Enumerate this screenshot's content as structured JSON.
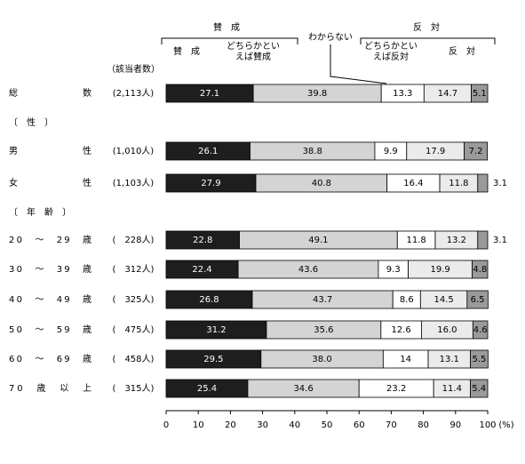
{
  "chart_data": {
    "type": "stacked-bar-horizontal",
    "group_labels": [
      "賛　成",
      "反　対"
    ],
    "count_header": "（該当者数）",
    "section_labels": [
      "〔　性　〕",
      "〔　年　齢　〕"
    ],
    "categories": [
      "総数",
      "男性",
      "女性",
      "20　～　29　歳",
      "30　～　39　歳",
      "40　～　49　歳",
      "50　～　59　歳",
      "60　～　69　歳",
      "70　歳　以　上"
    ],
    "counts": [
      "(2,113人)",
      "(1,010人)",
      "(1,103人)",
      "(　228人)",
      "(　312人)",
      "(　325人)",
      "(　475人)",
      "(　458人)",
      "(　315人)"
    ],
    "series": [
      {
        "name": "賛　成",
        "color": "#1e1e1e",
        "values": [
          27.1,
          26.1,
          27.9,
          22.8,
          22.4,
          26.8,
          31.2,
          29.5,
          25.4
        ]
      },
      {
        "name": "どちらかといえば賛成",
        "color": "#d4d4d4",
        "values": [
          39.8,
          38.8,
          40.8,
          49.1,
          43.6,
          43.7,
          35.6,
          38.0,
          34.6
        ],
        "value_labels": [
          "39.8",
          "38.8",
          "40.8",
          "49.1",
          "43.6",
          "43.7",
          "35.6",
          "38.0",
          "34.6"
        ]
      },
      {
        "name": "わからない",
        "color": "#ffffff",
        "values": [
          13.3,
          9.9,
          16.4,
          11.8,
          9.3,
          8.6,
          12.6,
          14.0,
          23.2
        ]
      },
      {
        "name": "どちらかといえば反対",
        "color": "#ebebeb",
        "values": [
          14.7,
          17.9,
          11.8,
          13.2,
          19.9,
          14.5,
          16.0,
          13.1,
          11.4
        ],
        "value_labels": [
          "14.7",
          "17.9",
          "11.8",
          "13.2",
          "19.9",
          "14.5",
          "16.0",
          "13.1",
          "11.4"
        ]
      },
      {
        "name": "反　対",
        "color": "#9a9a9a",
        "values": [
          5.1,
          7.2,
          3.1,
          3.1,
          4.8,
          6.5,
          4.6,
          5.5,
          5.4
        ]
      }
    ],
    "xlim": [
      0,
      100
    ],
    "xticks": [
      0,
      10,
      20,
      30,
      40,
      50,
      60,
      70,
      80,
      90,
      100
    ],
    "x_unit": "(%)"
  }
}
